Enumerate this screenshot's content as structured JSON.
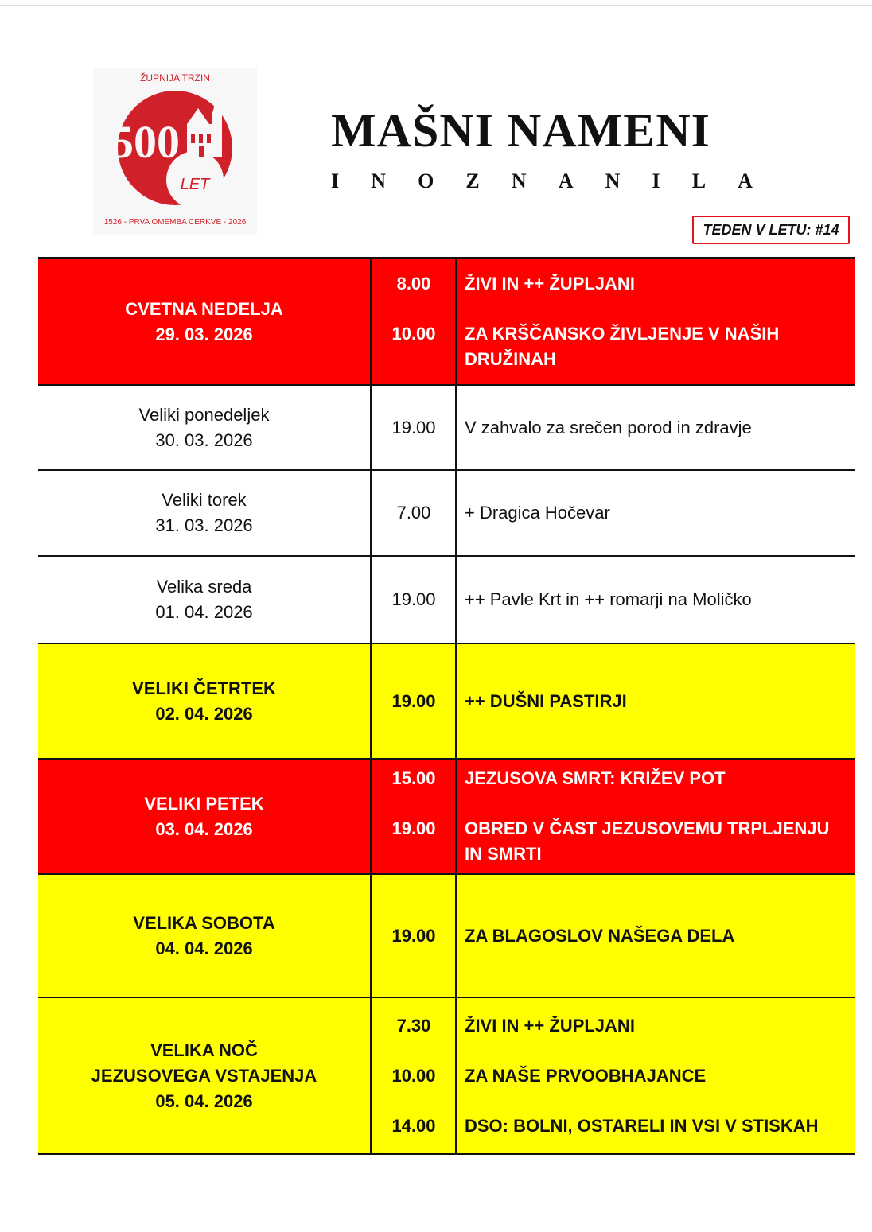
{
  "logo": {
    "top_text": "ŽUPNIJA TRZIN",
    "number": "500",
    "let": "LET",
    "bottom_text": "1526 - PRVA OMEMBA CERKVE - 2026",
    "color": "#d0202a"
  },
  "header": {
    "title": "MAŠNI NAMENI",
    "subtitle_letters": [
      "I",
      "N",
      "O",
      "Z",
      "N",
      "A",
      "N",
      "I",
      "L",
      "A"
    ],
    "week_label": "TEDEN V LETU:  #14"
  },
  "colors": {
    "red": "#fe0000",
    "yellow": "#ffff00"
  },
  "rows": [
    {
      "style": "red",
      "day": "CVETNA NEDELJA",
      "date": "29. 03. 2026",
      "masses": [
        {
          "time": "8.00",
          "intention": "ŽIVI IN ++ ŽUPLJANI"
        },
        {
          "time": "10.00",
          "intention": "ZA KRŠČANSKO ŽIVLJENJE V NAŠIH DRUŽINAH"
        }
      ]
    },
    {
      "style": "white",
      "day": "Veliki ponedeljek",
      "date": "30. 03. 2026",
      "masses": [
        {
          "time": "19.00",
          "intention": "V zahvalo za srečen porod in zdravje"
        }
      ]
    },
    {
      "style": "white",
      "day": "Veliki torek",
      "date": "31. 03. 2026",
      "masses": [
        {
          "time": "7.00",
          "intention": "+ Dragica Hočevar"
        }
      ]
    },
    {
      "style": "white",
      "day": "Velika sreda",
      "date": "01. 04. 2026",
      "masses": [
        {
          "time": "19.00",
          "intention": "++ Pavle Krt in ++ romarji na Moličko"
        }
      ]
    },
    {
      "style": "yellow",
      "day": "VELIKI ČETRTEK",
      "date": "02. 04. 2026",
      "masses": [
        {
          "time": "19.00",
          "intention": "++ DUŠNI PASTIRJI"
        }
      ]
    },
    {
      "style": "red",
      "day": "VELIKI PETEK",
      "date": "03. 04. 2026",
      "masses": [
        {
          "time": "15.00",
          "intention": "JEZUSOVA SMRT: KRIŽEV POT"
        },
        {
          "time": "19.00",
          "intention": "OBRED V ČAST JEZUSOVEMU TRPLJENJU IN SMRTI"
        }
      ]
    },
    {
      "style": "yellow",
      "day": "VELIKA SOBOTA",
      "date": "04. 04. 2026",
      "masses": [
        {
          "time": "19.00",
          "intention": "ZA BLAGOSLOV NAŠEGA DELA"
        }
      ]
    },
    {
      "style": "yellow",
      "day": "VELIKA NOČ\nJEZUSOVEGA VSTAJENJA",
      "date": "05. 04. 2026",
      "masses": [
        {
          "time": "7.30",
          "intention": "ŽIVI IN ++ ŽUPLJANI"
        },
        {
          "time": "10.00",
          "intention": "ZA NAŠE PRVOOBHAJANCE"
        },
        {
          "time": "14.00",
          "intention": "DSO: BOLNI, OSTARELI IN VSI V STISKAH"
        }
      ]
    }
  ]
}
